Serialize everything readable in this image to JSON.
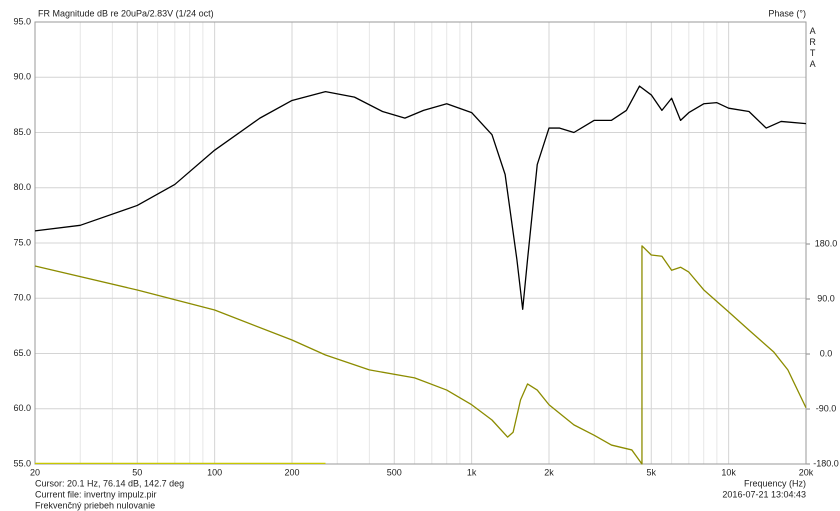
{
  "chart_data": {
    "type": "line",
    "title": "FR Magnitude dB re 20uPa/2.83V (1/24 oct)",
    "y2_label": "Phase (°)",
    "brand": "ARTA",
    "x_label": "Frequency (Hz)",
    "cursor": "Cursor: 20.1 Hz, 76.14 dB, 142.7 deg",
    "current_file": "Current file: invertny impulz.pir",
    "description": "Frekvenčný priebeh nulovanie",
    "timestamp": "2016-07-21  13:04:43",
    "xscale": "log",
    "grid": true,
    "xlim": [
      20,
      20000
    ],
    "xticks": [
      20,
      50,
      100,
      200,
      500,
      {
        "value": 1000,
        "label": "1k"
      },
      {
        "value": 2000,
        "label": "2k"
      },
      {
        "value": 5000,
        "label": "5k"
      },
      {
        "value": 10000,
        "label": "10k"
      },
      {
        "value": 20000,
        "label": "20k"
      }
    ],
    "xgrid_minor": [
      30,
      40,
      60,
      70,
      80,
      90,
      300,
      400,
      600,
      700,
      800,
      900,
      3000,
      4000,
      6000,
      7000,
      8000,
      9000
    ],
    "ylim": [
      55,
      95
    ],
    "yticks": [
      {
        "value": 55,
        "label": "55.0"
      },
      {
        "value": 60,
        "label": "60.0"
      },
      {
        "value": 65,
        "label": "65.0"
      },
      {
        "value": 70,
        "label": "70.0"
      },
      {
        "value": 75,
        "label": "75.0"
      },
      {
        "value": 80,
        "label": "80.0"
      },
      {
        "value": 85,
        "label": "85.0"
      },
      {
        "value": 90,
        "label": "90.0"
      },
      {
        "value": 95,
        "label": "95.0"
      }
    ],
    "y2lim": [
      -180,
      543.3
    ],
    "y2ticks": [
      {
        "value": -180,
        "label": "-180.0"
      },
      {
        "value": -90,
        "label": "-90.0"
      },
      {
        "value": 0,
        "label": "0.0"
      },
      {
        "value": 90,
        "label": "90.0"
      },
      {
        "value": 180,
        "label": "180.0"
      }
    ],
    "series": [
      {
        "color": "#000000",
        "x": [
          20,
          30,
          50,
          70,
          100,
          150,
          200,
          270,
          350,
          450,
          550,
          650,
          800,
          1000,
          1200,
          1350,
          1500,
          1580,
          1650,
          1800,
          2000,
          2200,
          2500,
          3000,
          3500,
          4000,
          4500,
          5000,
          5500,
          6000,
          6500,
          7000,
          8000,
          9000,
          10000,
          12000,
          14000,
          16000,
          20000
        ],
        "values": [
          76.1,
          76.6,
          78.4,
          80.3,
          83.4,
          86.3,
          87.9,
          88.7,
          88.2,
          86.9,
          86.3,
          87.0,
          87.6,
          86.8,
          84.8,
          81.2,
          73.5,
          69.0,
          73.5,
          82.1,
          85.4,
          85.4,
          85.0,
          86.1,
          86.1,
          87.0,
          89.2,
          88.4,
          87.0,
          88.1,
          86.1,
          86.8,
          87.6,
          87.7,
          87.2,
          86.9,
          85.4,
          86.0,
          85.8
        ]
      },
      {
        "color": "#8c8c00",
        "axis": "y2",
        "x": [
          20,
          50,
          100,
          200,
          270,
          400,
          600,
          800,
          1000,
          1200,
          1380,
          1450,
          1550,
          1650,
          1800,
          2000,
          2500,
          3000,
          3500,
          4200,
          4600,
          4600,
          5000,
          5500,
          6000,
          6500,
          7000,
          8000,
          10000,
          12000,
          15000,
          17000,
          20000
        ],
        "values": [
          144,
          104.7,
          72,
          22.9,
          -1.6,
          -26,
          -39,
          -59,
          -83,
          -108,
          -136,
          -128,
          -75,
          -49,
          -59,
          -83,
          -116,
          -133,
          -149,
          -157,
          -180,
          177,
          162,
          160,
          137,
          142,
          134,
          105,
          69,
          39,
          3,
          -26,
          -88
        ]
      },
      {
        "color": "#c8c800",
        "axis": "y2",
        "x": [
          20,
          270
        ],
        "values": [
          -179,
          -179
        ]
      }
    ]
  }
}
